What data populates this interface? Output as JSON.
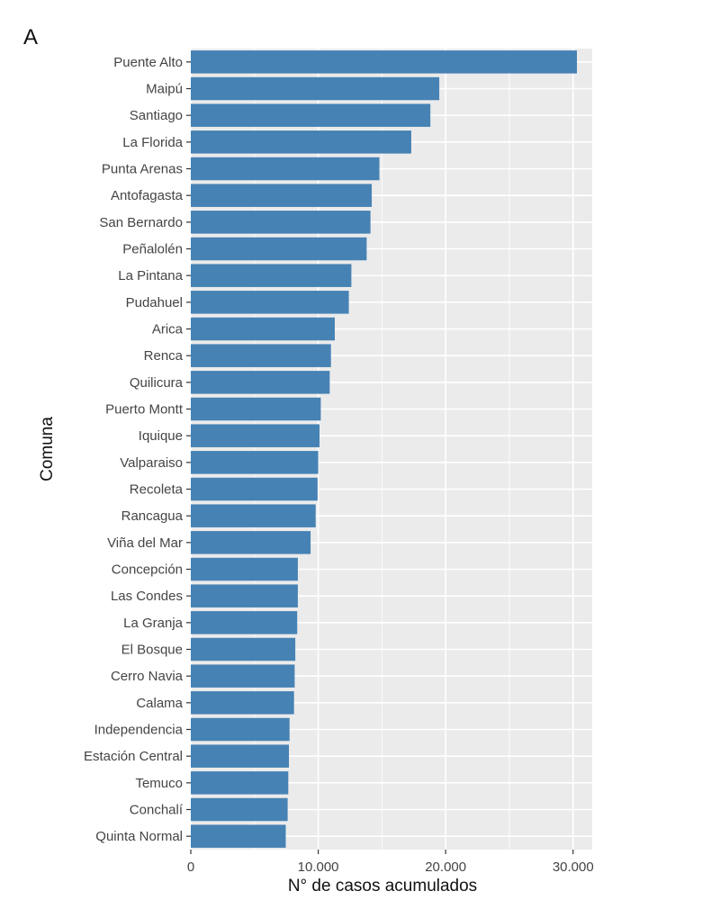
{
  "panel_label": "A",
  "chart_data": {
    "type": "bar",
    "orientation": "horizontal",
    "title": "",
    "xlabel": "N° de casos acumulados",
    "ylabel": "Comuna",
    "xlim": [
      0,
      31500
    ],
    "xticks": [
      0,
      10000,
      20000,
      30000
    ],
    "xtick_labels": [
      "0",
      "10.000",
      "20.000",
      "30.000"
    ],
    "grid": true,
    "bar_color": "#4682B4",
    "panel_color": "#EBEBEB",
    "categories": [
      "Puente Alto",
      "Maipú",
      "Santiago",
      "La Florida",
      "Punta Arenas",
      "Antofagasta",
      "San Bernardo",
      "Peñalolén",
      "La Pintana",
      "Pudahuel",
      "Arica",
      "Renca",
      "Quilicura",
      "Puerto Montt",
      "Iquique",
      "Valparaiso",
      "Recoleta",
      "Rancagua",
      "Viña del Mar",
      "Concepción",
      "Las Condes",
      "La Granja",
      "El Bosque",
      "Cerro Navia",
      "Calama",
      "Independencia",
      "Estación Central",
      "Temuco",
      "Conchalí",
      "Quinta Normal"
    ],
    "values": [
      30300,
      19500,
      18800,
      17300,
      14800,
      14200,
      14100,
      13800,
      12600,
      12400,
      11300,
      11000,
      10900,
      10200,
      10100,
      10000,
      9950,
      9800,
      9400,
      8400,
      8400,
      8350,
      8200,
      8150,
      8100,
      7750,
      7700,
      7650,
      7600,
      7450
    ]
  }
}
